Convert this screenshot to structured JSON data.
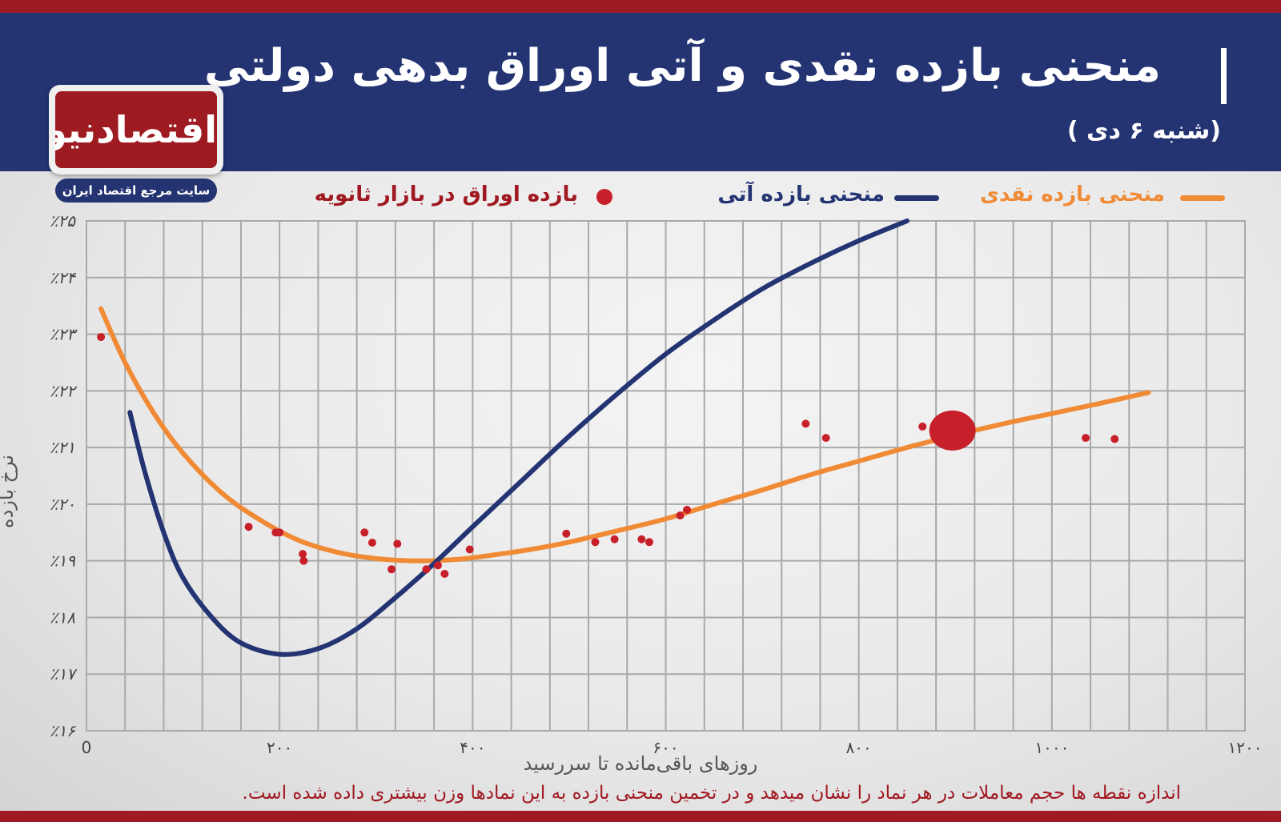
{
  "title": "منحنی بازده نقدی و آتی اوراق بدهی دولتی",
  "subtitle": "(شنبه ۶ دی )",
  "logo": {
    "name": "اقتصادنیوز",
    "tagline": "سایت مرجع اقتصاد ایران"
  },
  "footnote": "اندازه نقطه ها حجم معاملات در هر نماد را نشان میدهد و در تخمین منحنی بازده به این نمادها وزن بیشتری داده شده است.",
  "colors": {
    "header_bg": "#243473",
    "accent_red": "#9e1b22",
    "spot_curve": "#f08a35",
    "forward_curve": "#243473",
    "points": "#c8202a"
  },
  "chart_data": {
    "type": "line",
    "xlabel": "روزهای باقی‌مانده تا سررسید",
    "ylabel": "نرخ بازده",
    "xlim": [
      0,
      1200
    ],
    "ylim": [
      16,
      25
    ],
    "x_ticks": [
      0,
      200,
      400,
      600,
      800,
      1000,
      1200
    ],
    "x_tick_labels": [
      "0",
      "۲۰۰",
      "۴۰۰",
      "۶۰۰",
      "۸۰۰",
      "۱۰۰۰",
      "۱۲۰۰"
    ],
    "y_ticks": [
      16,
      17,
      18,
      19,
      20,
      21,
      22,
      23,
      24,
      25
    ],
    "y_tick_labels": [
      "٪۱۶",
      "٪۱۷",
      "٪۱۸",
      "٪۱۹",
      "٪۲۰",
      "٪۲۱",
      "٪۲۲",
      "٪۲۳",
      "٪۲۴",
      "٪۲۵"
    ],
    "grid": true,
    "legend": [
      "منحنی بازده نقدی",
      "منحنی بازده آتی",
      "بازده اوراق در بازار ثانویه"
    ],
    "legend_position": "top",
    "series": [
      {
        "name": "منحنی بازده نقدی",
        "kind": "line",
        "color": "#f08a35",
        "points": [
          [
            15,
            23.45
          ],
          [
            40,
            22.5
          ],
          [
            70,
            21.6
          ],
          [
            100,
            20.9
          ],
          [
            140,
            20.2
          ],
          [
            180,
            19.72
          ],
          [
            220,
            19.36
          ],
          [
            260,
            19.15
          ],
          [
            300,
            19.04
          ],
          [
            340,
            19.0
          ],
          [
            380,
            19.02
          ],
          [
            420,
            19.1
          ],
          [
            460,
            19.2
          ],
          [
            500,
            19.33
          ],
          [
            550,
            19.53
          ],
          [
            600,
            19.74
          ],
          [
            650,
            20.0
          ],
          [
            700,
            20.25
          ],
          [
            750,
            20.52
          ],
          [
            800,
            20.76
          ],
          [
            850,
            21.0
          ],
          [
            900,
            21.22
          ],
          [
            950,
            21.42
          ],
          [
            1000,
            21.6
          ],
          [
            1050,
            21.78
          ],
          [
            1100,
            21.97
          ]
        ]
      },
      {
        "name": "منحنی بازده آتی",
        "kind": "line",
        "color": "#243473",
        "points": [
          [
            45,
            21.62
          ],
          [
            60,
            20.6
          ],
          [
            80,
            19.5
          ],
          [
            100,
            18.7
          ],
          [
            130,
            18.0
          ],
          [
            160,
            17.55
          ],
          [
            200,
            17.35
          ],
          [
            240,
            17.45
          ],
          [
            280,
            17.8
          ],
          [
            320,
            18.35
          ],
          [
            360,
            18.95
          ],
          [
            400,
            19.6
          ],
          [
            450,
            20.4
          ],
          [
            500,
            21.2
          ],
          [
            550,
            21.95
          ],
          [
            600,
            22.65
          ],
          [
            650,
            23.25
          ],
          [
            700,
            23.8
          ],
          [
            750,
            24.25
          ],
          [
            800,
            24.65
          ],
          [
            850,
            25.0
          ]
        ]
      },
      {
        "name": "بازده اوراق در بازار ثانویه",
        "kind": "scatter",
        "color": "#c8202a",
        "points": [
          [
            15,
            22.95,
            1
          ],
          [
            168,
            19.6,
            1
          ],
          [
            196,
            19.5,
            1
          ],
          [
            200,
            19.5,
            1
          ],
          [
            224,
            19.12,
            1
          ],
          [
            225,
            19.0,
            1
          ],
          [
            288,
            19.5,
            1
          ],
          [
            296,
            19.32,
            1
          ],
          [
            316,
            18.85,
            1
          ],
          [
            322,
            19.3,
            1
          ],
          [
            352,
            18.85,
            1
          ],
          [
            364,
            18.92,
            1
          ],
          [
            371,
            18.77,
            1
          ],
          [
            397,
            19.2,
            1
          ],
          [
            497,
            19.48,
            1
          ],
          [
            527,
            19.33,
            1
          ],
          [
            547,
            19.38,
            1
          ],
          [
            575,
            19.38,
            1
          ],
          [
            583,
            19.33,
            1
          ],
          [
            615,
            19.8,
            1
          ],
          [
            622,
            19.9,
            1
          ],
          [
            745,
            21.42,
            1
          ],
          [
            766,
            21.17,
            1
          ],
          [
            866,
            21.37,
            1
          ],
          [
            897,
            21.3,
            4
          ],
          [
            1035,
            21.17,
            1
          ],
          [
            1065,
            21.15,
            1
          ]
        ]
      }
    ]
  }
}
